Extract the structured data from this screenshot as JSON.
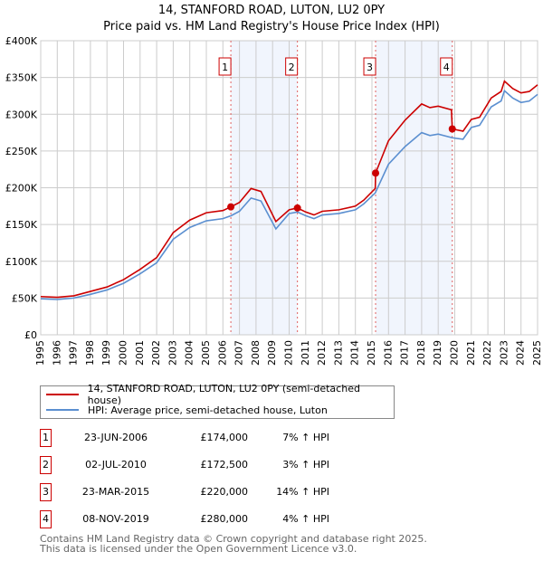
{
  "chart_data": {
    "type": "line",
    "title": "14, STANFORD ROAD, LUTON, LU2 0PY",
    "subtitle": "Price paid vs. HM Land Registry's House Price Index (HPI)",
    "xlim": [
      1995,
      2025
    ],
    "ylim": [
      0,
      400000
    ],
    "x_ticks": [
      "1995",
      "1996",
      "1997",
      "1998",
      "1999",
      "2000",
      "2001",
      "2002",
      "2003",
      "2004",
      "2005",
      "2006",
      "2007",
      "2008",
      "2009",
      "2010",
      "2011",
      "2012",
      "2013",
      "2014",
      "2015",
      "2016",
      "2017",
      "2018",
      "2019",
      "2020",
      "2021",
      "2022",
      "2023",
      "2024",
      "2025"
    ],
    "y_ticks": [
      {
        "v": 0,
        "label": "£0"
      },
      {
        "v": 50000,
        "label": "£50K"
      },
      {
        "v": 100000,
        "label": "£100K"
      },
      {
        "v": 150000,
        "label": "£150K"
      },
      {
        "v": 200000,
        "label": "£200K"
      },
      {
        "v": 250000,
        "label": "£250K"
      },
      {
        "v": 300000,
        "label": "£300K"
      },
      {
        "v": 350000,
        "label": "£350K"
      },
      {
        "v": 400000,
        "label": "£400K"
      }
    ],
    "grid": true,
    "series": [
      {
        "name": "14, STANFORD ROAD, LUTON, LU2 0PY (semi-detached house)",
        "color": "#cc0000",
        "x": [
          1995,
          1996,
          1997,
          1998,
          1999,
          2000,
          2001,
          2002,
          2003,
          2004,
          2005,
          2006,
          2006.48,
          2007,
          2007.7,
          2008.3,
          2009.2,
          2010,
          2010.5,
          2011,
          2011.5,
          2012,
          2013,
          2014,
          2014.5,
          2015.2,
          2015.22,
          2016,
          2017,
          2018,
          2018.5,
          2019,
          2019.8,
          2019.85,
          2020.5,
          2021,
          2021.5,
          2022.2,
          2022.8,
          2023,
          2023.5,
          2024,
          2024.5,
          2025
        ],
        "y": [
          52000,
          51000,
          53000,
          59000,
          65000,
          75000,
          89000,
          105000,
          139000,
          156000,
          166000,
          169000,
          174000,
          180000,
          199000,
          195000,
          154000,
          170000,
          172500,
          167000,
          163000,
          168000,
          170000,
          175000,
          183000,
          199000,
          220000,
          264000,
          292000,
          314000,
          309000,
          311000,
          306000,
          280000,
          277000,
          293000,
          296000,
          322000,
          331000,
          345000,
          335000,
          329000,
          331000,
          340000
        ]
      },
      {
        "name": "HPI: Average price, semi-detached house, Luton",
        "color": "#5b8fd0",
        "x": [
          1995,
          1996,
          1997,
          1998,
          1999,
          2000,
          2001,
          2002,
          2003,
          2004,
          2005,
          2006,
          2006.5,
          2007,
          2007.7,
          2008.3,
          2009.2,
          2010,
          2010.5,
          2011,
          2011.5,
          2012,
          2013,
          2014,
          2014.5,
          2015.2,
          2016,
          2017,
          2018,
          2018.5,
          2019,
          2019.85,
          2020.5,
          2021,
          2021.5,
          2022.2,
          2022.8,
          2023,
          2023.5,
          2024,
          2024.5,
          2025
        ],
        "y": [
          49000,
          48000,
          50000,
          55000,
          61000,
          70000,
          83000,
          98000,
          130000,
          146000,
          155000,
          158000,
          162000,
          168000,
          186000,
          182000,
          144000,
          165000,
          167000,
          162000,
          158000,
          163000,
          165000,
          170000,
          178000,
          193000,
          232000,
          256000,
          275000,
          271000,
          273000,
          268000,
          266000,
          282000,
          285000,
          310000,
          318000,
          332000,
          322000,
          316000,
          318000,
          327000
        ]
      }
    ],
    "shaded_ranges": [
      [
        2006.48,
        2010.5
      ],
      [
        2015.22,
        2019.85
      ]
    ],
    "sales": [
      {
        "n": "1",
        "x": 2006.48,
        "y": 174000,
        "date": "23-JUN-2006",
        "price": "£174,000",
        "pct": "7% ↑ HPI"
      },
      {
        "n": "2",
        "x": 2010.5,
        "y": 172500,
        "date": "02-JUL-2010",
        "price": "£172,500",
        "pct": "3% ↑ HPI"
      },
      {
        "n": "3",
        "x": 2015.22,
        "y": 220000,
        "date": "23-MAR-2015",
        "price": "£220,000",
        "pct": "14% ↑ HPI"
      },
      {
        "n": "4",
        "x": 2019.85,
        "y": 280000,
        "date": "08-NOV-2019",
        "price": "£280,000",
        "pct": "4% ↑ HPI"
      }
    ],
    "legend_position": "below"
  },
  "footer": {
    "line1": "Contains HM Land Registry data © Crown copyright and database right 2025.",
    "line2": "This data is licensed under the Open Government Licence v3.0."
  }
}
